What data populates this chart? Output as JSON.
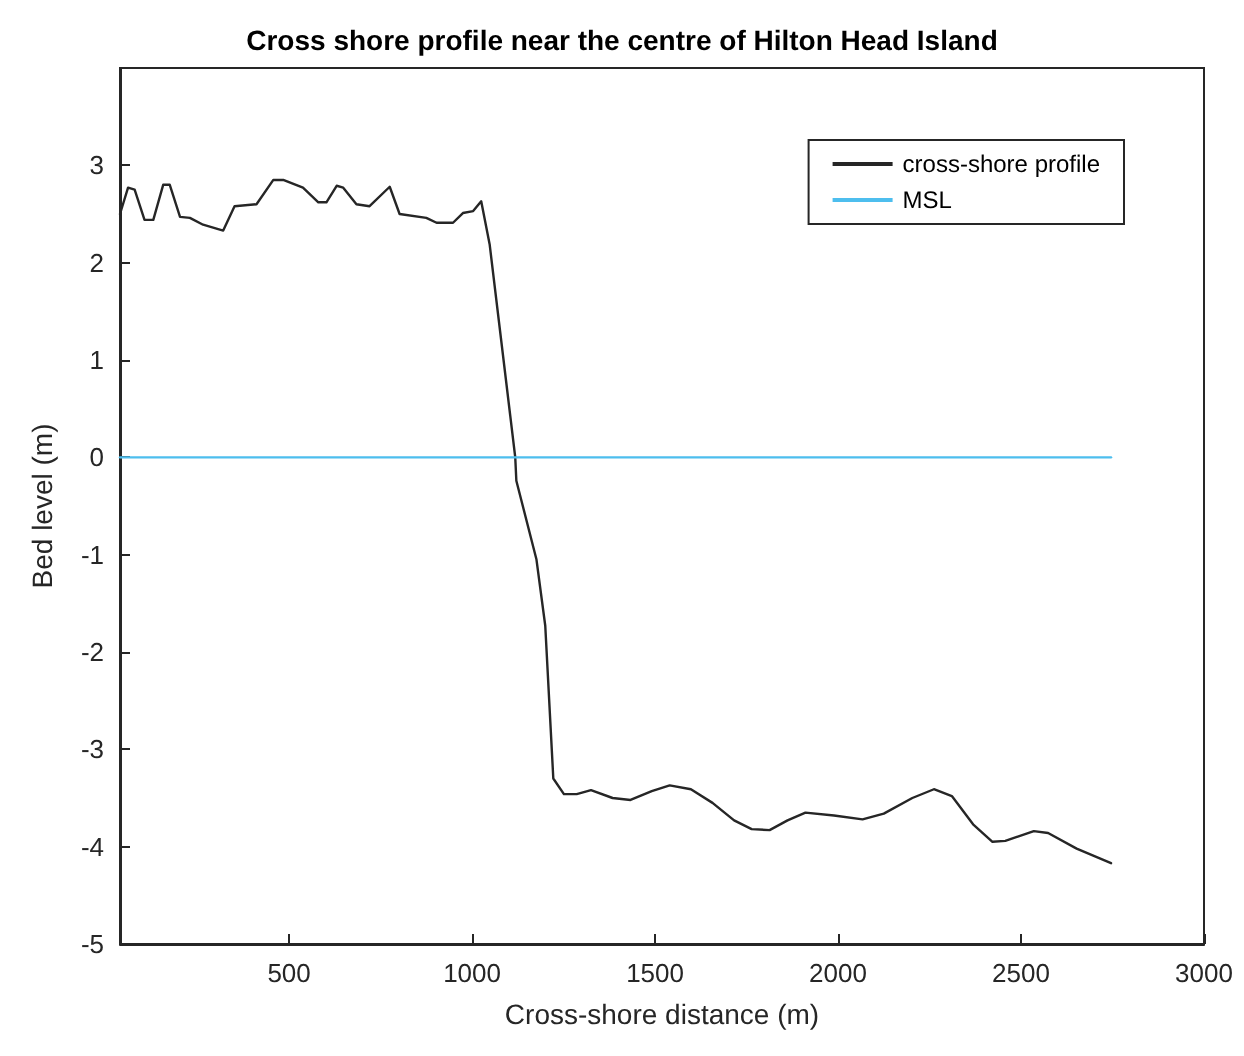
{
  "chart_data": {
    "type": "line",
    "title": "Cross shore profile near the centre of Hilton Head Island",
    "xlabel": "Cross-shore distance (m)",
    "ylabel": "Bed level (m)",
    "xlim": [
      38,
      3000
    ],
    "xticks": [
      500,
      1000,
      1500,
      2000,
      2500,
      3000
    ],
    "ylim": [
      -5,
      4
    ],
    "yticks": [
      -5,
      -4,
      -3,
      -2,
      -1,
      0,
      1,
      2,
      3
    ],
    "grid": false,
    "legend": "top right",
    "marker": "none",
    "line_style": "solid",
    "series": [
      {
        "name": "cross-shore profile",
        "color": "#262626",
        "x": [
          38,
          60,
          78,
          105,
          129,
          156,
          174,
          202,
          229,
          265,
          320,
          351,
          411,
          457,
          484,
          538,
          580,
          602,
          630,
          648,
          684,
          720,
          775,
          802,
          875,
          903,
          948,
          975,
          1003,
          1025,
          1048,
          1118,
          1121,
          1176,
          1200,
          1222,
          1251,
          1286,
          1325,
          1384,
          1433,
          1491,
          1540,
          1598,
          1657,
          1716,
          1764,
          1813,
          1862,
          1911,
          1989,
          2067,
          2125,
          2203,
          2262,
          2311,
          2369,
          2422,
          2457,
          2535,
          2574,
          2652,
          2746
        ],
        "values": [
          2.5,
          2.77,
          2.75,
          2.44,
          2.44,
          2.8,
          2.8,
          2.47,
          2.46,
          2.39,
          2.33,
          2.58,
          2.6,
          2.85,
          2.85,
          2.77,
          2.62,
          2.62,
          2.79,
          2.77,
          2.6,
          2.58,
          2.78,
          2.5,
          2.46,
          2.41,
          2.41,
          2.51,
          2.53,
          2.63,
          2.19,
          0.0,
          -0.24,
          -1.05,
          -1.73,
          -3.3,
          -3.46,
          -3.46,
          -3.42,
          -3.5,
          -3.52,
          -3.43,
          -3.37,
          -3.41,
          -3.55,
          -3.73,
          -3.82,
          -3.83,
          -3.73,
          -3.65,
          -3.68,
          -3.72,
          -3.66,
          -3.5,
          -3.41,
          -3.48,
          -3.77,
          -3.95,
          -3.94,
          -3.84,
          -3.86,
          -4.02,
          -4.17
        ]
      },
      {
        "name": "MSL",
        "color": "#4dbeee",
        "x": [
          38,
          2746
        ],
        "values": [
          0,
          0
        ]
      }
    ]
  }
}
